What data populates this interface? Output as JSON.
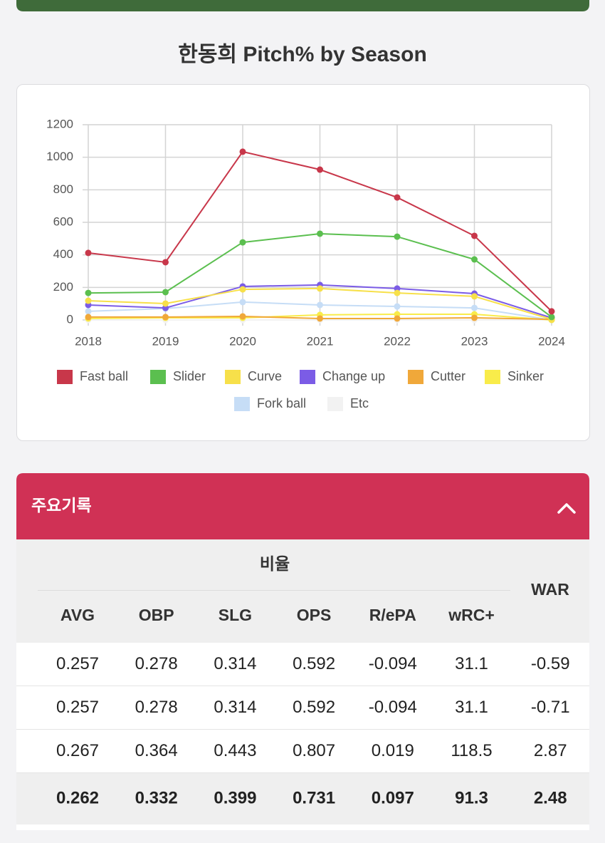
{
  "chart_data": {
    "type": "line",
    "title": "한동희 Pitch% by Season",
    "categories": [
      "2018",
      "2019",
      "2020",
      "2021",
      "2022",
      "2023",
      "2024"
    ],
    "ylim": [
      0,
      1200
    ],
    "yticks": [
      0,
      200,
      400,
      600,
      800,
      1000,
      1200
    ],
    "grid": true,
    "series": [
      {
        "name": "Fast ball",
        "color": "#c8374a",
        "values": [
          412,
          355,
          1034,
          924,
          753,
          517,
          53
        ]
      },
      {
        "name": "Slider",
        "color": "#5bbf4f",
        "values": [
          166,
          171,
          477,
          530,
          512,
          372,
          18
        ]
      },
      {
        "name": "Curve",
        "color": "#f7e04a",
        "values": [
          118,
          101,
          188,
          193,
          166,
          145,
          4
        ]
      },
      {
        "name": "Change up",
        "color": "#7b5ce6",
        "values": [
          92,
          74,
          206,
          215,
          193,
          162,
          13
        ]
      },
      {
        "name": "Cutter",
        "color": "#f0a83a",
        "values": [
          18,
          18,
          22,
          9,
          9,
          13,
          4
        ]
      },
      {
        "name": "Sinker",
        "color": "#f9ec4a",
        "values": [
          9,
          13,
          13,
          31,
          35,
          35,
          0
        ]
      },
      {
        "name": "Fork ball",
        "color": "#c6ddf6",
        "values": [
          53,
          70,
          110,
          92,
          83,
          74,
          0
        ]
      },
      {
        "name": "Etc",
        "color": "#f2f2f2",
        "values": [
          0,
          0,
          0,
          0,
          0,
          0,
          0
        ]
      }
    ]
  },
  "section": {
    "title": "주요기록"
  },
  "table": {
    "group": "비율",
    "war": "WAR",
    "columns": [
      "AVG",
      "OBP",
      "SLG",
      "OPS",
      "R/ePA",
      "wRC+"
    ],
    "rows": [
      [
        "0.257",
        "0.278",
        "0.314",
        "0.592",
        "-0.094",
        "31.1",
        "-0.59"
      ],
      [
        "0.257",
        "0.278",
        "0.314",
        "0.592",
        "-0.094",
        "31.1",
        "-0.71"
      ],
      [
        "0.267",
        "0.364",
        "0.443",
        "0.807",
        "0.019",
        "118.5",
        "2.87"
      ],
      [
        "0.262",
        "0.332",
        "0.399",
        "0.731",
        "0.097",
        "91.3",
        "2.48"
      ]
    ]
  }
}
